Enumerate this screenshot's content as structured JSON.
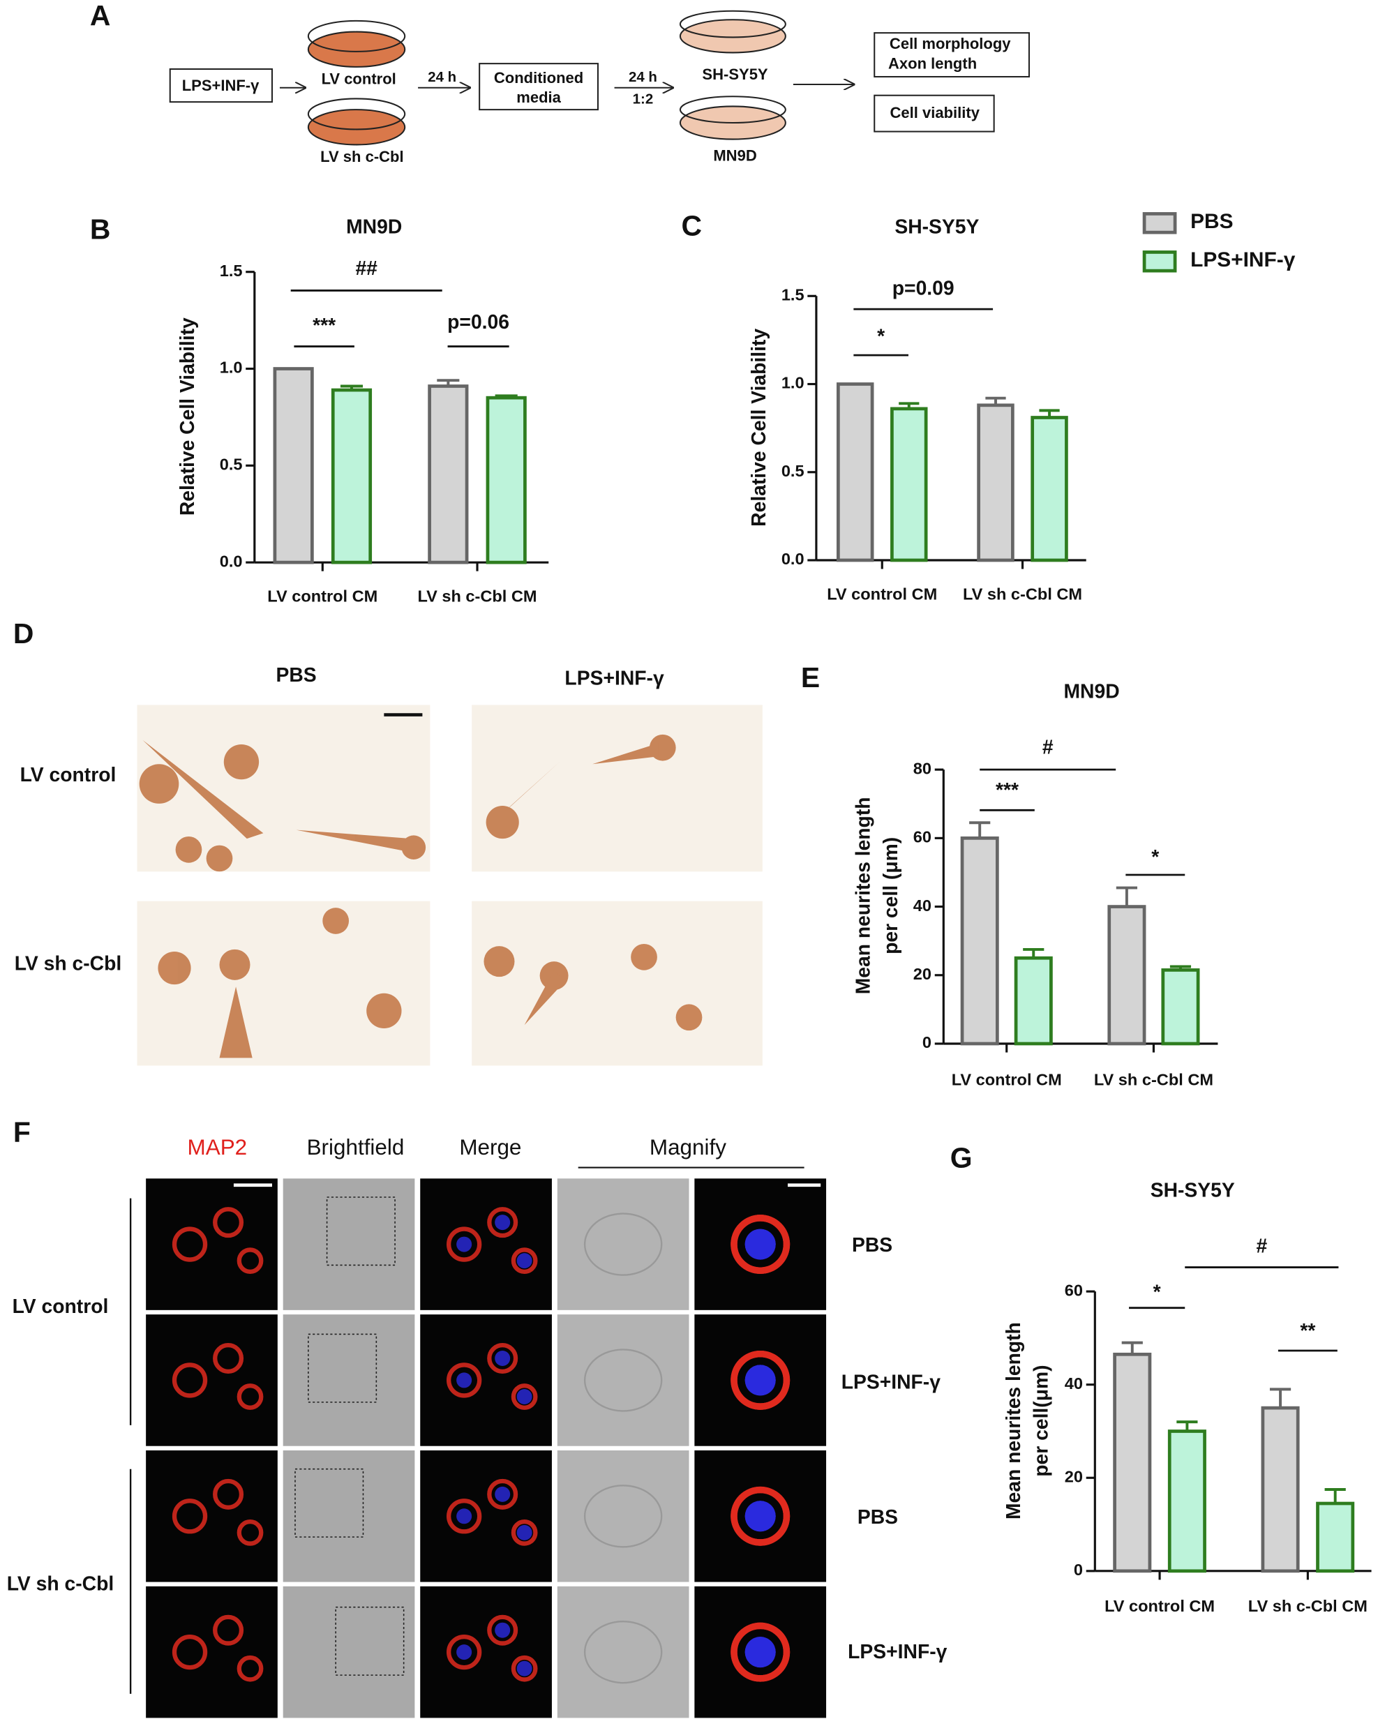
{
  "figure": {
    "panel_labels": [
      "A",
      "B",
      "C",
      "D",
      "E",
      "F",
      "G"
    ],
    "diagram": {
      "stimulus": "LPS+INF-γ",
      "dish_top": "LV control",
      "dish_bottom": "LV sh c-Cbl",
      "step1": "24 h",
      "media": [
        "Conditioned",
        "media"
      ],
      "step2": "24 h",
      "ratio": "1:2",
      "target_top": "SH-SY5Y",
      "target_bottom": "MN9D",
      "readout1": [
        "Cell morphology",
        "Axon length"
      ],
      "readout2": "Cell viability"
    },
    "micrographs_d": {
      "columns": [
        "PBS",
        "LPS+INF-γ"
      ],
      "rows": [
        "LV control",
        "LV sh c-Cbl"
      ]
    },
    "micrographs_f": {
      "columns": [
        "MAP2",
        "Brightfield",
        "Merge",
        "Magnify"
      ],
      "groups": [
        "LV control",
        "LV sh c-Cbl"
      ],
      "rows": [
        "PBS",
        "LPS+INF-γ",
        "PBS",
        "LPS+INF-γ"
      ]
    }
  },
  "chart_data": [
    {
      "type": "bar",
      "title": "MN9D",
      "ylabel": [
        "Relative Cell Viability"
      ],
      "categories": [
        "LV control CM",
        "LV sh c-Cbl CM"
      ],
      "series": [
        {
          "name": "PBS",
          "color": "#d4d4d4",
          "edgecolor": "#666666",
          "values": [
            1.0,
            0.91
          ],
          "errors": [
            0,
            0.03
          ]
        },
        {
          "name": "LPS+INF-γ",
          "color": "#bdf3da",
          "edgecolor": "#2e7d1f",
          "values": [
            0.89,
            0.85
          ],
          "errors": [
            0.02,
            0.01
          ]
        }
      ],
      "ylim": [
        0,
        1.5
      ],
      "yticks": [
        {
          "value": 0,
          "label": "0.0"
        },
        {
          "value": 0.5,
          "label": "0.5"
        },
        {
          "value": 1,
          "label": "1.0"
        },
        {
          "value": 1.5,
          "label": "1.5"
        }
      ],
      "annotations": [
        "***",
        "p=0.06",
        "##"
      ],
      "legend": "top-right"
    },
    {
      "type": "bar",
      "title": "SH-SY5Y",
      "ylabel": [
        "Relative Cell Viability"
      ],
      "categories": [
        "LV control CM",
        "LV sh c-Cbl CM"
      ],
      "series": [
        {
          "name": "PBS",
          "color": "#d4d4d4",
          "edgecolor": "#666666",
          "values": [
            1.0,
            0.88
          ],
          "errors": [
            0,
            0.04
          ]
        },
        {
          "name": "LPS+INF-γ",
          "color": "#bdf3da",
          "edgecolor": "#2e7d1f",
          "values": [
            0.86,
            0.81
          ],
          "errors": [
            0.03,
            0.04
          ]
        }
      ],
      "ylim": [
        0,
        1.5
      ],
      "yticks": [
        {
          "value": 0,
          "label": "0.0"
        },
        {
          "value": 0.5,
          "label": "0.5"
        },
        {
          "value": 1,
          "label": "1.0"
        },
        {
          "value": 1.5,
          "label": "1.5"
        }
      ],
      "annotations": [
        "*",
        "p=0.09"
      ]
    },
    {
      "type": "bar",
      "title": "MN9D",
      "ylabel": [
        "Mean neurites length",
        "per cell (μm)"
      ],
      "categories": [
        "LV control CM",
        "LV sh c-Cbl CM"
      ],
      "series": [
        {
          "name": "PBS",
          "color": "#d4d4d4",
          "edgecolor": "#666666",
          "values": [
            60,
            40
          ],
          "errors": [
            4.5,
            5.5
          ]
        },
        {
          "name": "LPS+INF-γ",
          "color": "#bdf3da",
          "edgecolor": "#2e7d1f",
          "values": [
            25,
            21.5
          ],
          "errors": [
            2.5,
            1
          ]
        }
      ],
      "ylim": [
        0,
        80
      ],
      "yticks": [
        0,
        20,
        40,
        60,
        80
      ],
      "annotations": [
        "***",
        "*",
        "#"
      ]
    },
    {
      "type": "bar",
      "title": "SH-SY5Y",
      "ylabel": [
        "Mean neurites length",
        "per cell(μm)"
      ],
      "categories": [
        "LV control CM",
        "LV sh c-Cbl CM"
      ],
      "series": [
        {
          "name": "PBS",
          "color": "#d4d4d4",
          "edgecolor": "#666666",
          "values": [
            46.5,
            35
          ],
          "errors": [
            2.5,
            4
          ]
        },
        {
          "name": "LPS+INF-γ",
          "color": "#bdf3da",
          "edgecolor": "#2e7d1f",
          "values": [
            30,
            14.5
          ],
          "errors": [
            2,
            3
          ]
        }
      ],
      "ylim": [
        0,
        60
      ],
      "yticks": [
        0,
        20,
        40,
        60
      ],
      "annotations": [
        "*",
        "**",
        "#"
      ]
    }
  ]
}
